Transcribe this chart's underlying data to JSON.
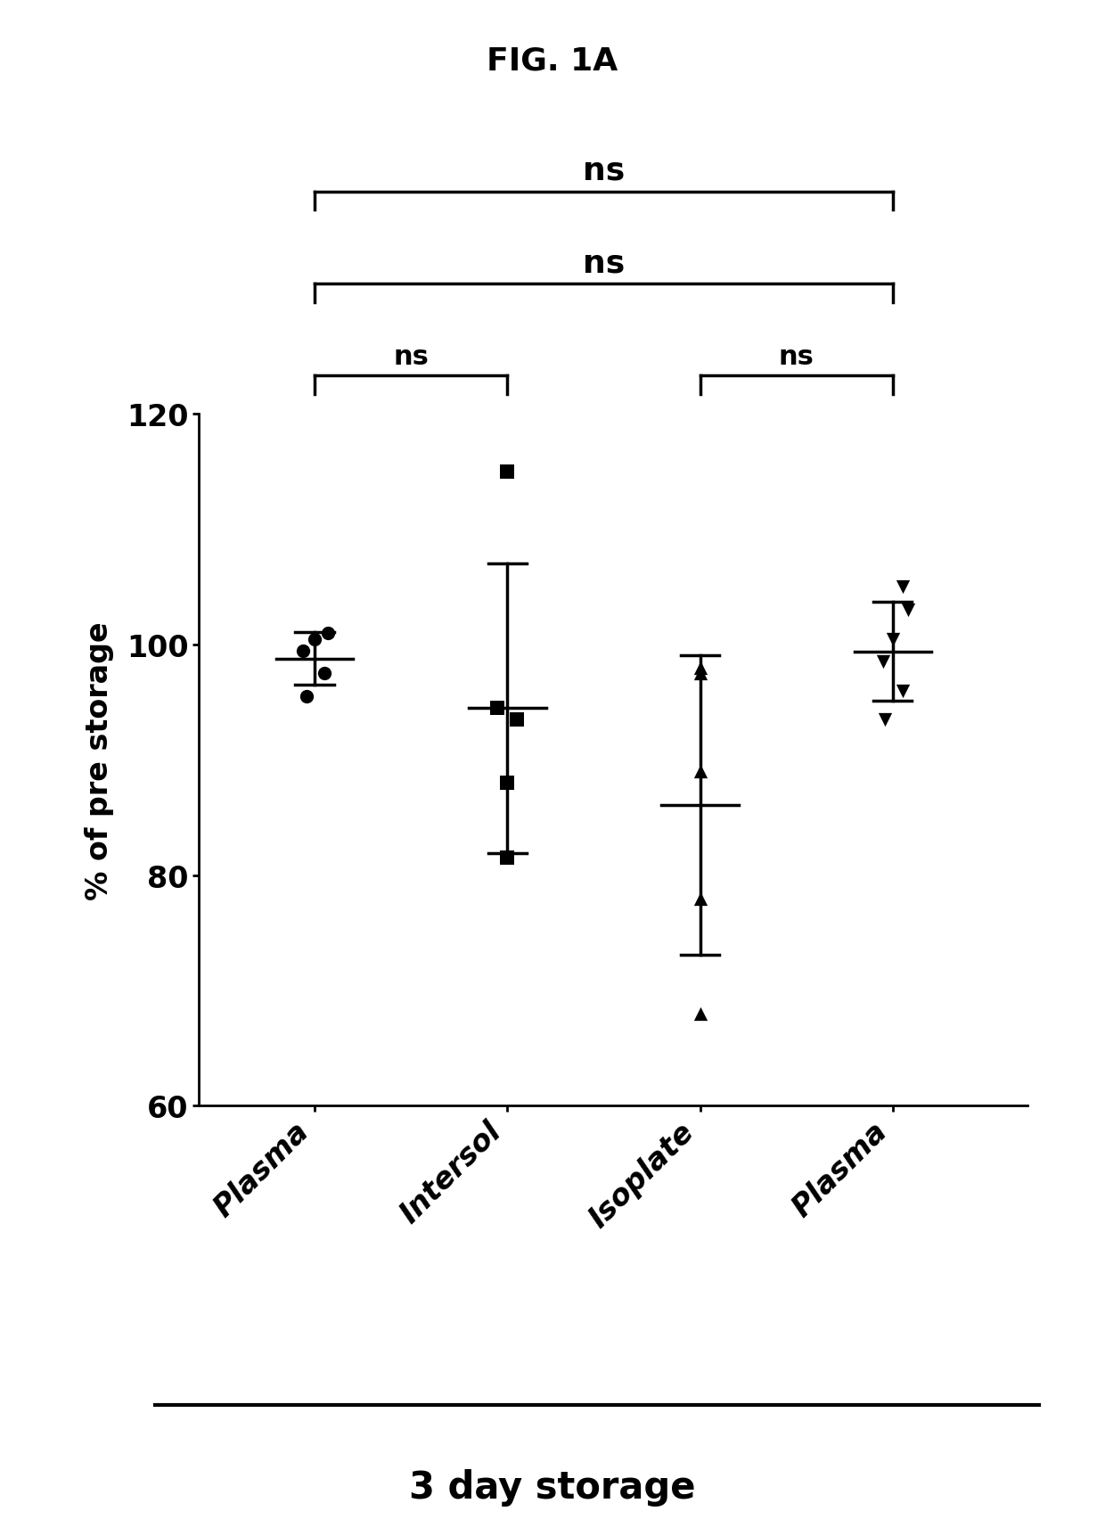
{
  "title": "FIG. 1A",
  "xlabel": "3 day storage",
  "ylabel": "% of pre storage",
  "ylim": [
    60,
    120
  ],
  "yticks": [
    60,
    80,
    100,
    120
  ],
  "categories": [
    "Plasma",
    "Intersol",
    "Isoplate",
    "Plasma"
  ],
  "x_positions": [
    1,
    2,
    3,
    4
  ],
  "plasma1_data": [
    99.5,
    100.5,
    101.0,
    97.5,
    95.5
  ],
  "intersol_data": [
    115.0,
    94.5,
    93.5,
    88.0,
    81.5
  ],
  "isoplate_data": [
    98.0,
    97.5,
    89.0,
    78.0,
    68.0
  ],
  "plasma2_data": [
    105.0,
    103.0,
    100.5,
    98.5,
    96.0,
    93.5
  ],
  "markers": [
    "o",
    "s",
    "^",
    "v"
  ],
  "marker_size": 11,
  "color": "#000000",
  "background_color": "#ffffff"
}
